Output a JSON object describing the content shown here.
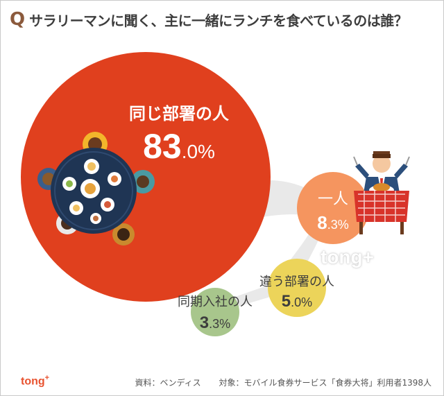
{
  "title": {
    "q": "Q",
    "text": "サラリーマンに聞く、主に一緒にランチを食べているのは誰？"
  },
  "chart_data": {
    "type": "bubble",
    "title": "サラリーマンに聞く、主に一緒にランチを食べているのは誰？",
    "unit": "%",
    "categories": [
      "同じ部署の人",
      "一人",
      "違う部署の人",
      "同期入社の人"
    ],
    "values": [
      83.0,
      8.3,
      5.0,
      3.3
    ],
    "value_labels": [
      {
        "int": "83",
        "dec": ".0%"
      },
      {
        "int": "8",
        "dec": ".3%"
      },
      {
        "int": "5",
        "dec": ".0%"
      },
      {
        "int": "3",
        "dec": ".3%"
      }
    ],
    "colors": [
      "#e0401e",
      "#f5955f",
      "#ecd45a",
      "#a8c68c"
    ]
  },
  "footer": {
    "logo": "tong",
    "logo_plus": "+",
    "source": "資料：ベンディス",
    "target": "対象：モバイル食券サービス「食券大将」利用者1398人"
  },
  "watermark": "tong+",
  "icons": [
    "dining-table-icon",
    "businessman-eating-icon"
  ]
}
